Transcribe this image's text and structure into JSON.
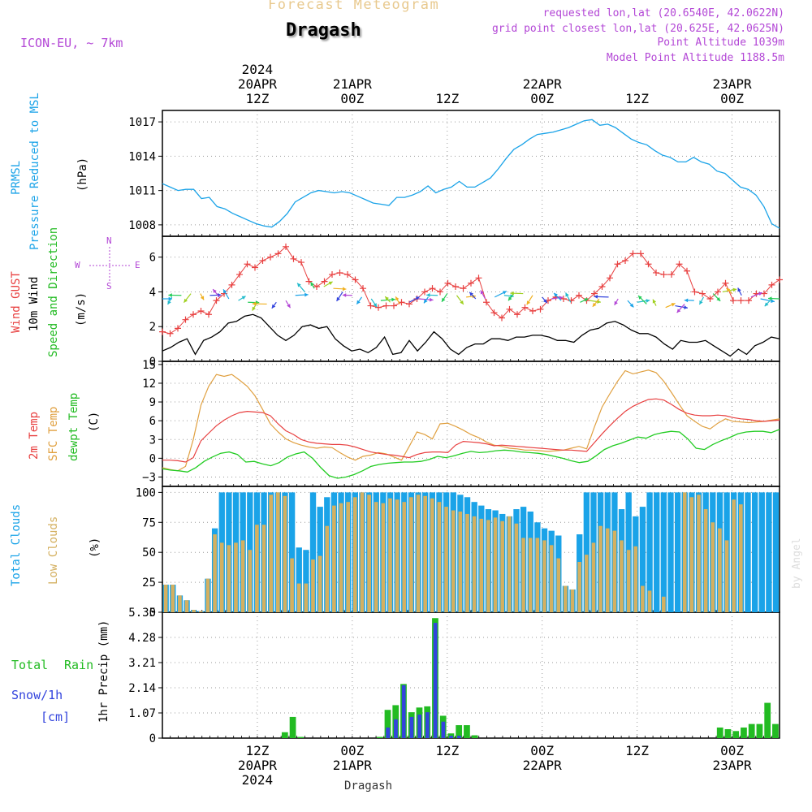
{
  "header": {
    "forecast_title": "Forecast Meteogram",
    "location": "Dragash",
    "model": "ICON-EU, ~ 7km",
    "requested": "requested lon,lat (20.6540E, 42.0622N)",
    "grid_point": "grid point closest lon,lat (20.625E, 42.0625N)",
    "point_altitude": "Point Altitude 1039m",
    "model_altitude": "Model Point Altitude 1188.5m",
    "footer": "Dragash",
    "credit": "by Angel"
  },
  "top_axis": [
    {
      "hour": 12,
      "lines": [
        "2024",
        "20APR",
        "12Z"
      ]
    },
    {
      "hour": 24,
      "lines": [
        "21APR",
        "00Z"
      ]
    },
    {
      "hour": 36,
      "lines": [
        "12Z"
      ]
    },
    {
      "hour": 48,
      "lines": [
        "22APR",
        "00Z"
      ]
    },
    {
      "hour": 60,
      "lines": [
        "12Z"
      ]
    },
    {
      "hour": 72,
      "lines": [
        "23APR",
        "00Z"
      ]
    }
  ],
  "bottom_axis": [
    {
      "hour": 12,
      "lines": [
        "12Z",
        "20APR",
        "2024"
      ]
    },
    {
      "hour": 24,
      "lines": [
        "00Z",
        "21APR"
      ]
    },
    {
      "hour": 36,
      "lines": [
        "12Z"
      ]
    },
    {
      "hour": 48,
      "lines": [
        "00Z",
        "22APR"
      ]
    },
    {
      "hour": 60,
      "lines": [
        "12Z"
      ]
    },
    {
      "hour": 72,
      "lines": [
        "00Z",
        "23APR"
      ]
    }
  ],
  "panels_text": {
    "prmsl": {
      "l1": "PRMSL",
      "l2": "Pressure Reduced to MSL",
      "unit": "(hPa)"
    },
    "wind": {
      "gust": "Wind GUST",
      "wind10": "10m Wind",
      "dir": "Speed and Direction",
      "unit": "(m/s)",
      "compass_n": "N",
      "compass_s": "S",
      "compass_w": "W",
      "compass_e": "E"
    },
    "temp": {
      "t2m": "2m Temp",
      "sfc": "SFC Temp",
      "dew": "dewpt Temp",
      "unit": "(C)"
    },
    "clouds": {
      "total": "Total Clouds",
      "low": "Low Clouds",
      "unit": "(%)"
    },
    "precip": {
      "total": "Total",
      "rain": "Rain",
      "snow": "Snow/1h",
      "cm": "[cm]",
      "axis": "1hr Precip (mm)"
    }
  },
  "colors": {
    "pressure": "#1aa3e8",
    "gust": "#e84040",
    "wind": "#000000",
    "t2m": "#e84040",
    "sfc": "#e0a040",
    "dew": "#22cc22",
    "total_clouds": "#1aa3e8",
    "low_clouds": "#d4b060",
    "rain": "#22bb22",
    "snow": "#3344dd",
    "text_purple": "#b347d6"
  },
  "chart_data": [
    {
      "type": "line",
      "title": "PRMSL Pressure Reduced to MSL",
      "ylabel": "(hPa)",
      "x_start_hour": 0,
      "x_end_hour": 78,
      "ylim": [
        1007,
        1018
      ],
      "yticks": [
        1008,
        1011,
        1014,
        1017
      ],
      "series": [
        {
          "name": "PRMSL",
          "values": [
            1011.6,
            1011.3,
            1011.0,
            1011.1,
            1011.1,
            1010.3,
            1010.4,
            1009.6,
            1009.4,
            1009.0,
            1008.7,
            1008.4,
            1008.1,
            1007.9,
            1007.8,
            1008.3,
            1009.0,
            1010.0,
            1010.4,
            1010.8,
            1011.0,
            1010.9,
            1010.8,
            1010.9,
            1010.8,
            1010.5,
            1010.2,
            1009.9,
            1009.8,
            1009.7,
            1010.4,
            1010.4,
            1010.6,
            1010.9,
            1011.4,
            1010.8,
            1011.1,
            1011.3,
            1011.8,
            1011.3,
            1011.3,
            1011.7,
            1012.1,
            1012.9,
            1013.8,
            1014.6,
            1015.0,
            1015.5,
            1015.9,
            1016.0,
            1016.1,
            1016.3,
            1016.5,
            1016.8,
            1017.1,
            1017.2,
            1016.7,
            1016.8,
            1016.5,
            1016.0,
            1015.5,
            1015.2,
            1015.0,
            1014.5,
            1014.1,
            1013.9,
            1013.5,
            1013.5,
            1013.9,
            1013.5,
            1013.3,
            1012.7,
            1012.5,
            1011.9,
            1011.3,
            1011.1,
            1010.6,
            1009.6,
            1008.1,
            1007.7
          ]
        }
      ]
    },
    {
      "type": "line",
      "title": "Wind GUST / 10m Wind Speed and Direction",
      "ylabel": "(m/s)",
      "x_start_hour": 0,
      "x_end_hour": 78,
      "ylim": [
        0,
        7.2
      ],
      "yticks": [
        0,
        2,
        4,
        6
      ],
      "series": [
        {
          "name": "Wind GUST",
          "values": [
            1.7,
            1.6,
            1.9,
            2.4,
            2.7,
            2.9,
            2.7,
            3.5,
            3.9,
            4.4,
            5.0,
            5.6,
            5.4,
            5.8,
            6.0,
            6.2,
            6.6,
            5.9,
            5.7,
            4.6,
            4.3,
            4.6,
            5.0,
            5.1,
            5.0,
            4.7,
            4.2,
            3.2,
            3.1,
            3.2,
            3.2,
            3.4,
            3.3,
            3.6,
            4.0,
            4.2,
            4.0,
            4.5,
            4.3,
            4.2,
            4.5,
            4.8,
            3.4,
            2.8,
            2.5,
            3.0,
            2.7,
            3.1,
            2.9,
            3.0,
            3.5,
            3.7,
            3.6,
            3.5,
            3.8,
            3.5,
            3.9,
            4.3,
            4.8,
            5.6,
            5.8,
            6.2,
            6.2,
            5.6,
            5.1,
            5.0,
            5.0,
            5.6,
            5.2,
            4.0,
            3.9,
            3.6,
            4.0,
            4.5,
            3.5,
            3.5,
            3.5,
            3.9,
            3.9,
            4.4,
            4.7
          ]
        },
        {
          "name": "10m Wind",
          "values": [
            0.6,
            0.8,
            1.1,
            1.3,
            0.4,
            1.2,
            1.4,
            1.7,
            2.2,
            2.3,
            2.6,
            2.7,
            2.5,
            2.0,
            1.5,
            1.2,
            1.5,
            2.0,
            2.1,
            1.9,
            2.0,
            1.3,
            0.9,
            0.6,
            0.7,
            0.5,
            0.8,
            1.4,
            0.4,
            0.5,
            1.2,
            0.6,
            1.1,
            1.7,
            1.3,
            0.7,
            0.4,
            0.8,
            1.0,
            1.0,
            1.3,
            1.3,
            1.2,
            1.4,
            1.4,
            1.5,
            1.5,
            1.4,
            1.2,
            1.2,
            1.1,
            1.5,
            1.8,
            1.9,
            2.2,
            2.3,
            2.1,
            1.8,
            1.6,
            1.6,
            1.4,
            1.0,
            0.7,
            1.2,
            1.1,
            1.1,
            1.2,
            0.9,
            0.6,
            0.3,
            0.7,
            0.4,
            0.9,
            1.1,
            1.4,
            1.3
          ]
        },
        {
          "name": "Wind Direction Arrows",
          "values": [
            3.6,
            3.7,
            3.8,
            3.9,
            3.9,
            3.8,
            3.7,
            3.6,
            3.5,
            3.4,
            3.4,
            3.3,
            3.4,
            3.5,
            3.8,
            4.0,
            4.2,
            4.3,
            4.2,
            4.0,
            3.8,
            3.7,
            3.6,
            3.5,
            3.4,
            3.3,
            3.4,
            3.6,
            3.7,
            3.8,
            3.9,
            3.8,
            3.7,
            3.6,
            3.6,
            3.7,
            3.8,
            3.9,
            3.9,
            3.8,
            3.7,
            3.6,
            3.5,
            3.4,
            3.4,
            3.5,
            3.6,
            3.7,
            3.6,
            3.5,
            3.4,
            3.3,
            3.2,
            3.1,
            3.2,
            3.3,
            3.5,
            3.7,
            3.9,
            4.0,
            3.9,
            3.8,
            3.7,
            3.6,
            3.5,
            3.6
          ]
        }
      ]
    },
    {
      "type": "line",
      "title": "2m Temp / SFC Temp / dewpt Temp",
      "ylabel": "(C)",
      "x_start_hour": 0,
      "x_end_hour": 78,
      "ylim": [
        -4.5,
        15.5
      ],
      "yticks": [
        -3,
        0,
        3,
        6,
        9,
        12,
        15
      ],
      "series": [
        {
          "name": "2m Temp",
          "values": [
            -0.3,
            -0.3,
            -0.4,
            -0.6,
            0.1,
            2.8,
            4.0,
            5.2,
            6.1,
            6.8,
            7.3,
            7.5,
            7.4,
            7.3,
            6.8,
            5.5,
            4.4,
            3.8,
            3.0,
            2.6,
            2.4,
            2.3,
            2.2,
            2.2,
            2.1,
            1.8,
            1.4,
            1.0,
            0.8,
            0.6,
            0.5,
            0.3,
            0.1,
            0.6,
            0.9,
            1.0,
            1.0,
            0.9,
            2.1,
            2.7,
            2.6,
            2.5,
            2.3,
            2.0,
            2.1,
            2.0,
            1.9,
            1.8,
            1.7,
            1.6,
            1.5,
            1.4,
            1.3,
            1.3,
            1.2,
            1.1,
            2.5,
            3.9,
            5.2,
            6.4,
            7.5,
            8.3,
            8.9,
            9.4,
            9.5,
            9.3,
            8.6,
            7.8,
            7.2,
            6.9,
            6.8,
            6.8,
            6.9,
            6.8,
            6.5,
            6.3,
            6.2,
            6.0,
            5.9,
            6.0,
            6.1
          ]
        },
        {
          "name": "SFC Temp",
          "values": [
            -1.5,
            -1.8,
            -2.0,
            -1.3,
            3.0,
            8.5,
            11.5,
            13.4,
            13.1,
            13.4,
            12.5,
            11.5,
            10.0,
            7.8,
            5.5,
            4.2,
            3.1,
            2.5,
            2.1,
            1.8,
            1.6,
            1.8,
            1.7,
            0.9,
            0.2,
            -0.3,
            0.3,
            0.5,
            0.9,
            0.7,
            0.2,
            -0.3,
            1.9,
            4.2,
            3.8,
            3.1,
            5.5,
            5.6,
            5.1,
            4.5,
            3.8,
            3.3,
            2.6,
            2.1,
            1.9,
            1.6,
            1.5,
            1.3,
            1.3,
            1.2,
            1.1,
            1.2,
            1.3,
            1.6,
            1.9,
            1.5,
            5.0,
            8.2,
            10.3,
            12.3,
            14.0,
            13.5,
            13.8,
            14.1,
            13.7,
            12.3,
            10.5,
            8.6,
            6.8,
            5.9,
            5.1,
            4.7,
            5.6,
            6.3,
            5.9,
            5.8,
            5.7,
            5.8,
            5.9,
            6.1,
            6.3
          ]
        },
        {
          "name": "dewpt Temp",
          "values": [
            -1.7,
            -1.9,
            -2.0,
            -2.2,
            -1.5,
            -0.5,
            0.2,
            0.8,
            1.0,
            0.6,
            -0.6,
            -0.5,
            -0.9,
            -1.2,
            -0.7,
            0.2,
            0.7,
            1.0,
            0.0,
            -1.5,
            -2.8,
            -3.2,
            -3.0,
            -2.6,
            -2.0,
            -1.3,
            -1.0,
            -0.8,
            -0.7,
            -0.6,
            -0.6,
            -0.5,
            -0.2,
            0.3,
            0.1,
            0.4,
            0.8,
            1.1,
            0.9,
            1.0,
            1.2,
            1.3,
            1.2,
            1.0,
            0.9,
            0.8,
            0.6,
            0.3,
            0.0,
            -0.4,
            -0.7,
            -0.5,
            0.4,
            1.4,
            2.0,
            2.4,
            2.9,
            3.4,
            3.2,
            3.8,
            4.1,
            4.3,
            4.2,
            3.1,
            1.6,
            1.4,
            2.2,
            2.8,
            3.3,
            3.9,
            4.2,
            4.3,
            4.3,
            4.1,
            4.6
          ]
        }
      ]
    },
    {
      "type": "bar",
      "title": "Total Clouds / Low Clouds",
      "ylabel": "(%)",
      "x_start_hour": 0,
      "x_end_hour": 78,
      "ylim": [
        0,
        105
      ],
      "yticks": [
        0,
        25,
        50,
        75,
        100
      ],
      "series": [
        {
          "name": "Total Clouds",
          "values": [
            23,
            23,
            14,
            10,
            2,
            1,
            28,
            70,
            100,
            100,
            100,
            100,
            100,
            100,
            100,
            100,
            100,
            100,
            100,
            54,
            52,
            100,
            88,
            96,
            100,
            100,
            100,
            100,
            100,
            100,
            100,
            100,
            100,
            100,
            100,
            100,
            100,
            100,
            100,
            100,
            100,
            100,
            98,
            96,
            92,
            89,
            86,
            85,
            82,
            80,
            86,
            88,
            84,
            75,
            70,
            68,
            64,
            22,
            19,
            65,
            100,
            100,
            100,
            100,
            100,
            86,
            100,
            80,
            88,
            100,
            100,
            100,
            100,
            100,
            100,
            100,
            100,
            100,
            100,
            100,
            100,
            100,
            100,
            100,
            100,
            100,
            100,
            100
          ]
        },
        {
          "name": "Low Clouds",
          "values": [
            23,
            23,
            14,
            10,
            2,
            1,
            28,
            65,
            58,
            56,
            58,
            60,
            52,
            73,
            73,
            98,
            100,
            97,
            45,
            24,
            24,
            44,
            47,
            72,
            89,
            91,
            92,
            96,
            100,
            98,
            92,
            91,
            95,
            94,
            92,
            96,
            98,
            97,
            95,
            92,
            88,
            85,
            84,
            82,
            80,
            78,
            77,
            79,
            76,
            80,
            74,
            62,
            62,
            62,
            60,
            56,
            45,
            22,
            19,
            42,
            48,
            58,
            72,
            70,
            68,
            60,
            52,
            55,
            22,
            18,
            0,
            13,
            0,
            0,
            100,
            96,
            98,
            86,
            75,
            70,
            60,
            94,
            90
          ]
        }
      ]
    },
    {
      "type": "bar",
      "title": "1hr Precip (mm)",
      "ylabel": "1hr Precip (mm)",
      "x_start_hour": 0,
      "x_end_hour": 78,
      "ylim": [
        0,
        5.35
      ],
      "yticks": [
        0,
        1.07,
        2.14,
        3.21,
        4.28,
        5.35
      ],
      "series": [
        {
          "name": "Total Rain",
          "values": [
            0,
            0,
            0,
            0,
            0,
            0,
            0,
            0,
            0,
            0,
            0,
            0,
            0,
            0,
            0,
            0.25,
            0.9,
            0.05,
            0,
            0,
            0,
            0,
            0,
            0,
            0,
            0,
            0,
            0.05,
            1.2,
            1.4,
            2.3,
            1.1,
            1.3,
            1.35,
            5.1,
            0.95,
            0.2,
            0.55,
            0.55,
            0.12,
            0,
            0,
            0,
            0,
            0,
            0,
            0,
            0,
            0,
            0,
            0,
            0,
            0,
            0,
            0,
            0,
            0,
            0,
            0,
            0,
            0,
            0,
            0,
            0,
            0,
            0,
            0,
            0,
            0,
            0,
            0.45,
            0.38,
            0.3,
            0.45,
            0.6,
            0.6,
            1.5,
            0.6
          ]
        },
        {
          "name": "Snow/1h",
          "values": [
            0,
            0,
            0,
            0,
            0,
            0,
            0,
            0,
            0,
            0,
            0,
            0,
            0,
            0,
            0,
            0,
            0,
            0,
            0,
            0,
            0,
            0,
            0,
            0,
            0,
            0,
            0,
            0,
            0.45,
            0.8,
            2.25,
            0.9,
            1.0,
            1.1,
            4.9,
            0.7,
            0.1,
            0.1,
            0,
            0,
            0,
            0,
            0,
            0,
            0,
            0,
            0,
            0,
            0,
            0,
            0,
            0,
            0,
            0,
            0,
            0,
            0,
            0,
            0,
            0,
            0,
            0,
            0,
            0,
            0,
            0,
            0,
            0,
            0,
            0,
            0,
            0,
            0,
            0,
            0,
            0,
            0,
            0
          ]
        }
      ]
    }
  ]
}
